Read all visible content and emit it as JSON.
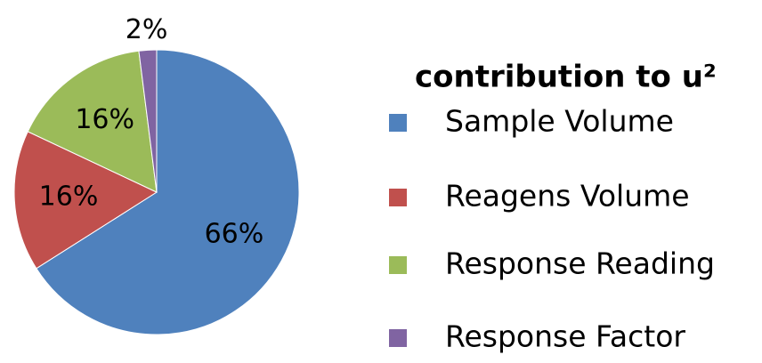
{
  "chart_data": {
    "type": "pie",
    "title": "contribution to u²",
    "categories": [
      "Sample Volume",
      "Reagens Volume",
      "Response Reading",
      "Response Factor"
    ],
    "values": [
      66,
      16,
      16,
      2
    ],
    "value_labels": [
      "66%",
      "16%",
      "16%",
      "2%"
    ],
    "colors": [
      "#4f81bd",
      "#c0504d",
      "#9bbb59",
      "#8064a2"
    ],
    "legend": "right"
  }
}
